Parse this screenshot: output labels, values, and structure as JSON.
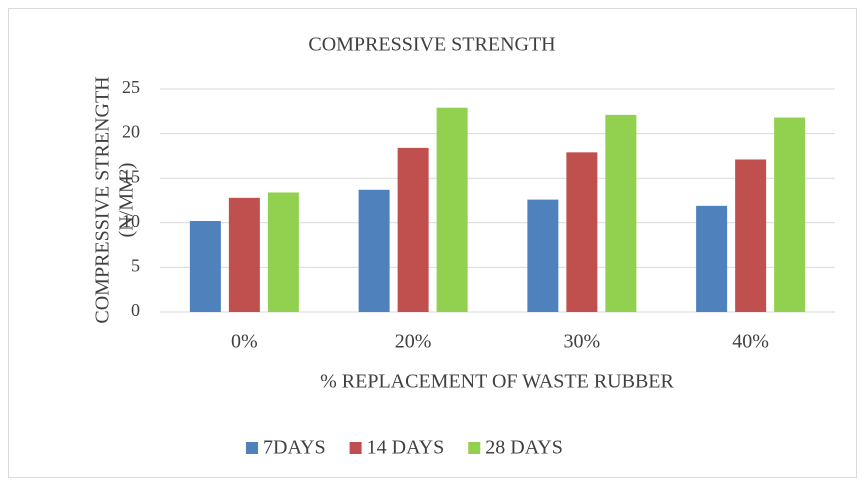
{
  "chart_data": {
    "type": "bar",
    "title": "COMPRESSIVE STRENGTH",
    "x_label": "% REPLACEMENT OF WASTE RUBBER",
    "y_label": [
      "COMPRESSIVE STRENGTH",
      "(N/MM²)"
    ],
    "categories": [
      "0%",
      "20%",
      "30%",
      "40%"
    ],
    "series": [
      {
        "name": "7DAYS",
        "color": "#4f81bd",
        "values": [
          10.2,
          13.7,
          12.6,
          11.9
        ]
      },
      {
        "name": "14 DAYS",
        "color": "#c0504d",
        "values": [
          12.8,
          18.4,
          17.9,
          17.1
        ]
      },
      {
        "name": "28 DAYS",
        "color": "#92d050",
        "values": [
          13.4,
          22.9,
          22.1,
          21.8
        ]
      }
    ],
    "ylim": [
      0,
      25
    ],
    "yticks": [
      0,
      5,
      10,
      15,
      20,
      25
    ],
    "grid": true,
    "legend": "bottom"
  }
}
